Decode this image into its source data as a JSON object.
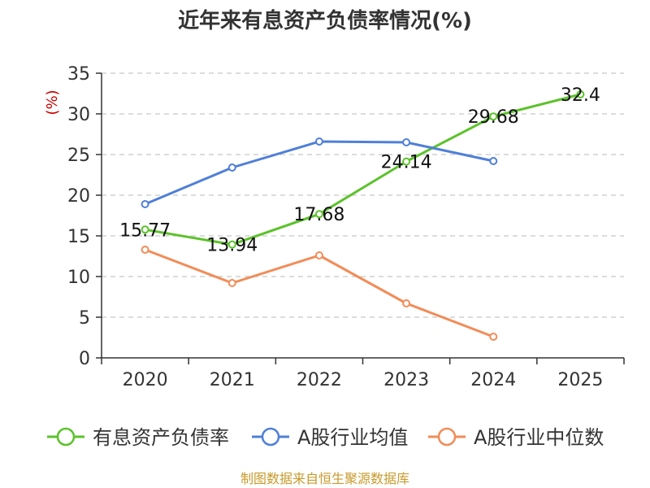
{
  "chart_data": {
    "type": "line",
    "title": "近年来有息资产负债率情况(%)",
    "ylabel": "(%)",
    "categories": [
      "2020",
      "2021",
      "2022",
      "2023",
      "2024",
      "2025"
    ],
    "ylim": [
      0,
      35
    ],
    "yticks": [
      0,
      5,
      10,
      15,
      20,
      25,
      30,
      35
    ],
    "grid": true,
    "legend_position": "bottom",
    "series": [
      {
        "name": "有息资产负债率",
        "color": "#5cc22a",
        "values": [
          15.77,
          13.94,
          17.68,
          24.14,
          29.68,
          32.4
        ],
        "labels": [
          "15.77",
          "13.94",
          "17.68",
          "24.14",
          "29.68",
          "32.4"
        ]
      },
      {
        "name": "A股行业均值",
        "color": "#4f7fd8",
        "values": [
          18.9,
          23.4,
          26.6,
          26.5,
          24.2,
          null
        ]
      },
      {
        "name": "A股行业中位数",
        "color": "#f28c58",
        "values": [
          13.3,
          9.2,
          12.6,
          6.7,
          2.6,
          null
        ]
      }
    ]
  },
  "source": "制图数据来自恒生聚源数据库",
  "colors": {
    "unit": "#cc0000",
    "source": "#c89a2a",
    "axis": "#333333"
  }
}
